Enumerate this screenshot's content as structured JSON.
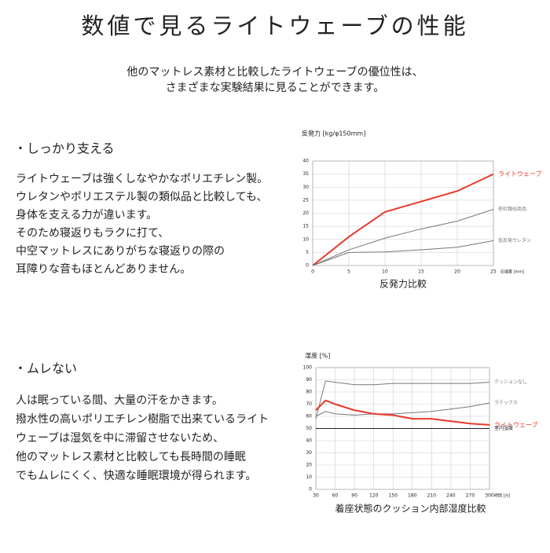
{
  "header": {
    "title": "数値で見るライトウェーブの性能",
    "lead": [
      "他のマットレス素材と比較したライトウェーブの優位性は、",
      "さまざまな実験結果に見ることができます。"
    ]
  },
  "sections": [
    {
      "heading": "・しっかり支える",
      "lines": [
        "ライトウェーブは強くしなやかなポリエチレン製。",
        "ウレタンやポリエステル製の類似品と比較しても、",
        "身体を支える力が違います。",
        "そのため寝返りもラクに打て、",
        "中空マットレスにありがちな寝返りの際の",
        "耳障りな音もほとんどありません。"
      ],
      "chart_data": {
        "type": "line",
        "caption": "反発力比較",
        "y_label": "反発力 [kg/φ150mm]",
        "x_label": "圧縮量 [mm]",
        "x": [
          0,
          5,
          10,
          15,
          20,
          25
        ],
        "xlim": [
          0,
          25
        ],
        "xticks": [
          0,
          5,
          10,
          15,
          20,
          25
        ],
        "ylim": [
          0,
          40
        ],
        "yticks": [
          0,
          5,
          10,
          15,
          20,
          25,
          30,
          35,
          40
        ],
        "grid": true,
        "series": [
          {
            "name": "ライトウェーブ",
            "color": "#e8392a",
            "values": [
              0,
              11,
              20.5,
              24.5,
              28.5,
              35
            ]
          },
          {
            "name": "他社類似商品",
            "color": "#777777",
            "values": [
              0,
              6,
              10.5,
              14,
              17,
              21.5
            ]
          },
          {
            "name": "低反発ウレタン",
            "color": "#777777",
            "values": [
              0,
              5,
              5.2,
              6,
              7,
              9.5
            ]
          }
        ]
      }
    },
    {
      "heading": "・ムレない",
      "lines": [
        "人は眠っている間、大量の汗をかきます。",
        "撥水性の高いポリエチレン樹脂で出来ているライト",
        "ウェーブは湿気を中に滞留させないため、",
        "他のマットレス素材と比較しても長時間の睡眠",
        "でもムレにくく、快適な睡眠環境が得られます。"
      ],
      "chart_data": {
        "type": "line",
        "caption": "着座状態のクッション内部湿度比較",
        "y_label": "湿度 [%]",
        "x_label": "時間 [分]",
        "x": [
          30,
          45,
          60,
          90,
          120,
          150,
          180,
          210,
          240,
          270,
          300
        ],
        "xlim": [
          30,
          300
        ],
        "xticks": [
          30,
          60,
          90,
          120,
          150,
          180,
          210,
          240,
          270,
          300
        ],
        "ylim": [
          0,
          100
        ],
        "yticks": [
          0,
          10,
          20,
          30,
          40,
          50,
          60,
          70,
          80,
          90,
          100
        ],
        "grid": true,
        "series": [
          {
            "name": "クッションなし",
            "color": "#777777",
            "values": [
              58,
              89,
              88,
              86,
              86,
              87,
              87,
              87,
              87,
              87,
              88
            ]
          },
          {
            "name": "ラテックス",
            "color": "#777777",
            "values": [
              60,
              64,
              62,
              61,
              62,
              62,
              63,
              64,
              66,
              68,
              71
            ]
          },
          {
            "name": "ライトウェーブ",
            "color": "#e8392a",
            "values": [
              65,
              73,
              70,
              65,
              62,
              61,
              58,
              58,
              56,
              54,
              53
            ]
          },
          {
            "name": "室内湿度",
            "color": "#222222",
            "values": [
              50,
              50,
              50,
              50,
              50,
              50,
              50,
              50,
              50,
              50,
              50
            ]
          }
        ]
      }
    }
  ]
}
